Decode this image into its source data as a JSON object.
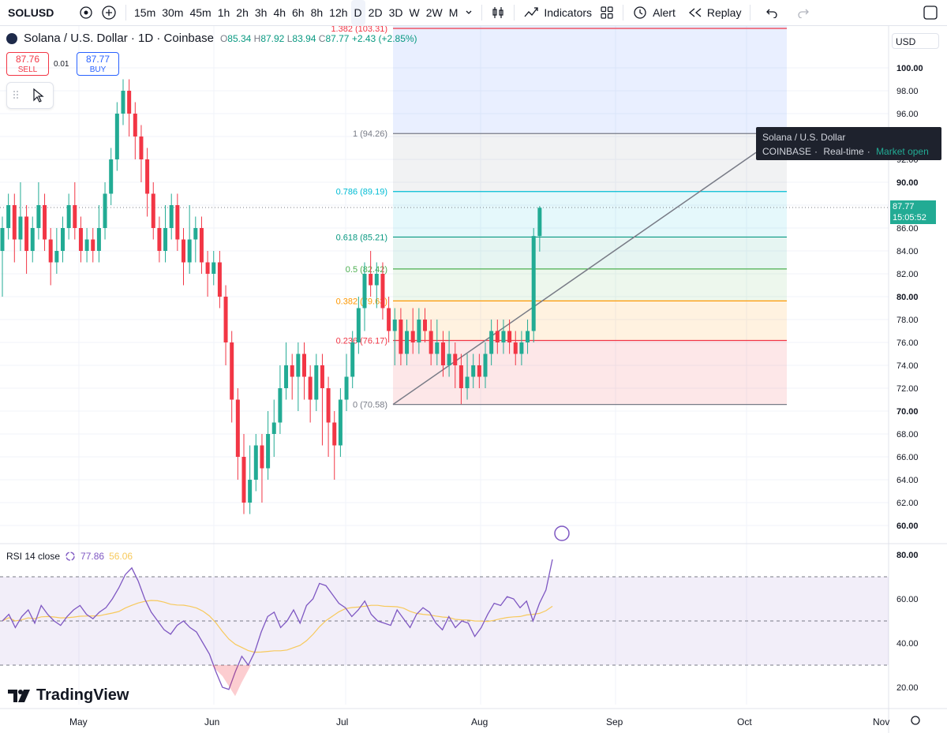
{
  "toolbar": {
    "symbol": "SOLUSD",
    "timeframes": [
      "15m",
      "30m",
      "45m",
      "1h",
      "2h",
      "3h",
      "4h",
      "6h",
      "8h",
      "12h",
      "D",
      "2D",
      "3D",
      "W",
      "2W",
      "M"
    ],
    "active_timeframe": "D",
    "indicators_label": "Indicators",
    "alert_label": "Alert",
    "replay_label": "Replay"
  },
  "legend": {
    "title": "Solana / U.S. Dollar · 1D · Coinbase",
    "o_label": "O",
    "o_value": "85.34",
    "h_label": "H",
    "h_value": "87.92",
    "l_label": "L",
    "l_value": "83.94",
    "c_label": "C",
    "c_value": "87.77",
    "change": "+2.43 (+2.85%)"
  },
  "trade": {
    "sell_price": "87.76",
    "sell_label": "SELL",
    "spread": "0.01",
    "buy_price": "87.77",
    "buy_label": "BUY"
  },
  "tooltip": {
    "title": "Solana / U.S. Dollar",
    "exchange": "COINBASE",
    "feed": "Real-time",
    "status": "Market open"
  },
  "price_axis": {
    "currency": "USD",
    "ticks": [
      "100.00",
      "98.00",
      "96.00",
      "92.00",
      "90.00",
      "86.00",
      "84.00",
      "82.00",
      "80.00",
      "78.00",
      "76.00",
      "74.00",
      "72.00",
      "70.00",
      "68.00",
      "66.00",
      "64.00",
      "62.00",
      "60.00"
    ],
    "last_price": "87.77",
    "countdown": "15:05:52"
  },
  "fib": [
    {
      "label": "1.382 (103.31)",
      "price": 103.31,
      "color": "#f23645"
    },
    {
      "label": "1 (94.26)",
      "price": 94.26,
      "color": "#787b86"
    },
    {
      "label": "0.786 (89.19)",
      "price": 89.19,
      "color": "#00bcd4"
    },
    {
      "label": "0.618 (85.21)",
      "price": 85.21,
      "color": "#089981"
    },
    {
      "label": "0.5 (82.42)",
      "price": 82.42,
      "color": "#4caf50"
    },
    {
      "label": "0.382 (79.63)",
      "price": 79.63,
      "color": "#ff9800"
    },
    {
      "label": "0.236 (76.17)",
      "price": 76.17,
      "color": "#f23645"
    },
    {
      "label": "0 (70.58)",
      "price": 70.58,
      "color": "#787b86"
    }
  ],
  "rsi": {
    "label": "RSI 14 close",
    "value": "77.86",
    "ma_value": "56.06",
    "ticks": [
      "80.00",
      "60.00",
      "40.00",
      "20.00"
    ]
  },
  "time_axis": [
    "May",
    "Jun",
    "Jul",
    "Aug",
    "Sep",
    "Oct",
    "Nov"
  ],
  "brand": "TradingView",
  "colors": {
    "up": "#22ab94",
    "down": "#f23645",
    "rsi": "#7e57c2",
    "rsi_ma": "#f7c95c"
  }
}
